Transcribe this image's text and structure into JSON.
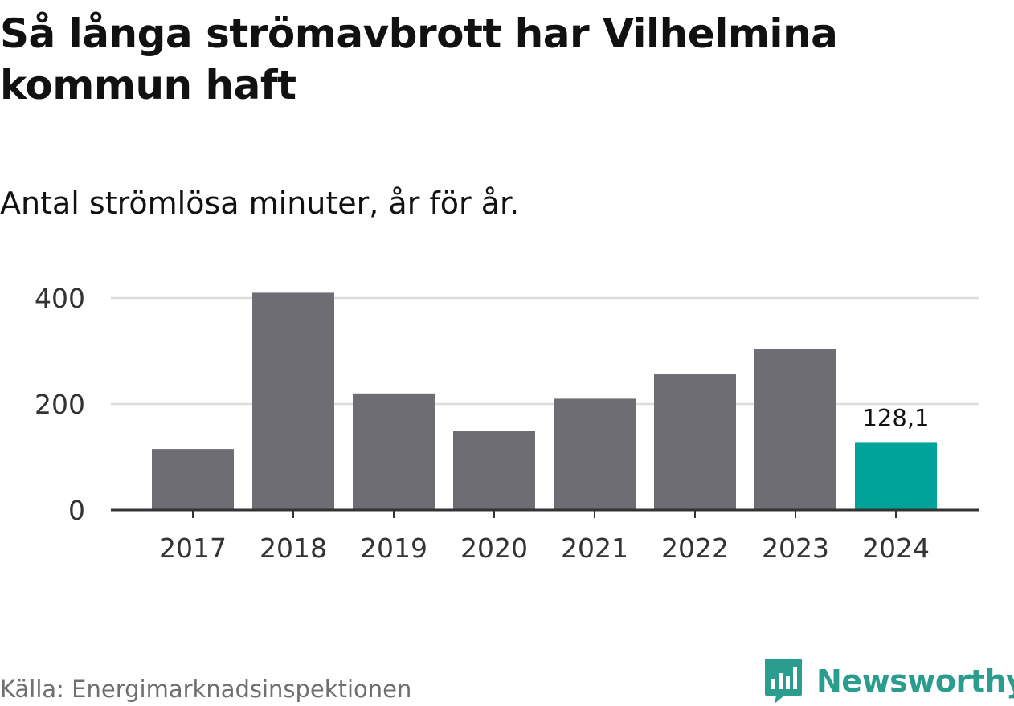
{
  "title": "Så långa strömavbrott har Vilhelmina kommun haft",
  "subtitle": "Antal strömlösa minuter, år för år.",
  "source": "Källa: Energimarknadsinspektionen",
  "brand": {
    "name": "Newsworthy",
    "icon": "newsworthy-logo-icon",
    "color": "#2a9d8f"
  },
  "colors": {
    "bar": "#6e6d74",
    "highlight": "#00a39a",
    "grid": "#dddddd",
    "axis": "#333333"
  },
  "chart_data": {
    "type": "bar",
    "title": "Så långa strömavbrott har Vilhelmina kommun haft",
    "subtitle": "Antal strömlösa minuter, år för år.",
    "xlabel": "",
    "ylabel": "",
    "categories": [
      "2017",
      "2018",
      "2019",
      "2020",
      "2021",
      "2022",
      "2023",
      "2024"
    ],
    "values": [
      115,
      410,
      220,
      150,
      210,
      256,
      303,
      128.1
    ],
    "highlight_index": 7,
    "data_labels": [
      "",
      "",
      "",
      "",
      "",
      "",
      "",
      "128,1"
    ],
    "ylim": [
      0,
      400
    ],
    "yticks": [
      0,
      200,
      400
    ],
    "ytick_labels": [
      "0",
      "200",
      "400"
    ],
    "grid": true,
    "legend": "none"
  }
}
